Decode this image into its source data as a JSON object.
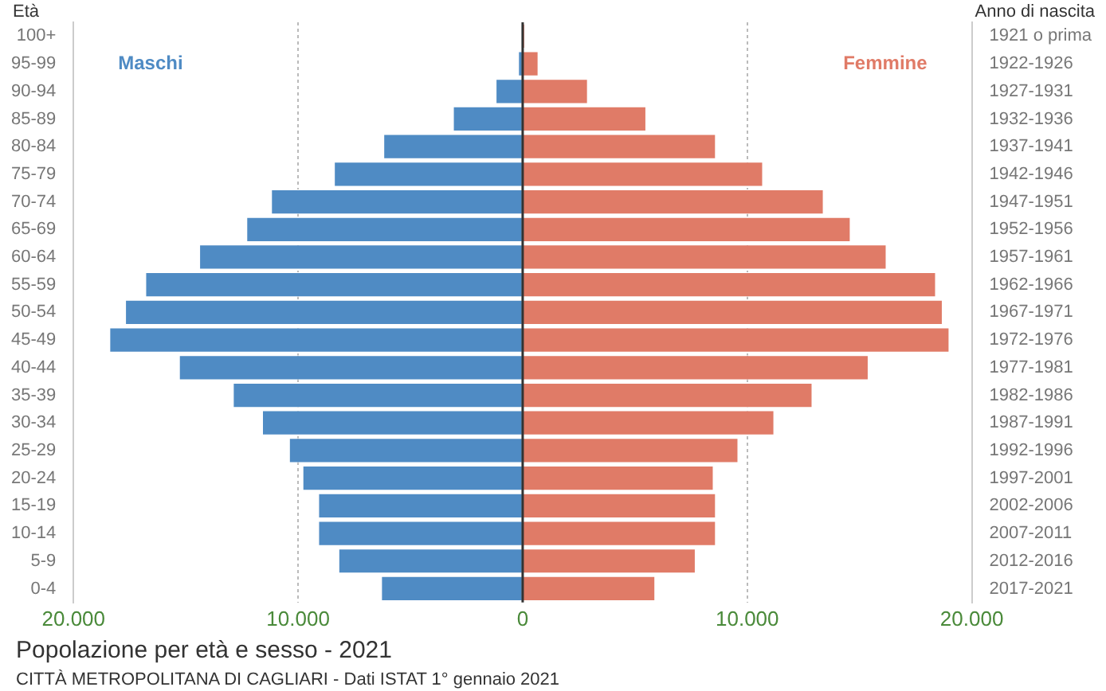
{
  "chart_data": {
    "type": "bar",
    "orientation": "horizontal",
    "stacked": true,
    "title": "Popolazione per età e sesso - 2021",
    "ylabel": "Età",
    "y2label": "Anno di nascita",
    "categories": [
      "100+",
      "95-99",
      "90-94",
      "85-89",
      "80-84",
      "75-79",
      "70-74",
      "65-69",
      "60-64",
      "55-59",
      "50-54",
      "45-49",
      "40-44",
      "35-39",
      "30-34",
      "25-29",
      "20-24",
      "15-19",
      "10-14",
      "5-9",
      "0-4"
    ],
    "y2_categories": [
      "1921 o prima",
      "1922-1926",
      "1927-1931",
      "1932-1936",
      "1937-1941",
      "1942-1946",
      "1947-1951",
      "1952-1956",
      "1957-1961",
      "1962-1966",
      "1967-1971",
      "1972-1976",
      "1977-1981",
      "1982-1986",
      "1987-1991",
      "1992-1996",
      "1997-2001",
      "2002-2006",
      "2007-2011",
      "2012-2016",
      "2017-2021"
    ],
    "series": [
      {
        "name": "Maschi",
        "color": "#4f8bc4",
        "values": [
          -50,
          -200,
          -1200,
          -3100,
          -6200,
          -8400,
          -11200,
          -12300,
          -14400,
          -16800,
          -17700,
          -18400,
          -15300,
          -12900,
          -11600,
          -10400,
          -9800,
          -9100,
          -9100,
          -8200,
          -6300
        ]
      },
      {
        "name": "Femmine",
        "color": "#e07b67",
        "values": [
          100,
          700,
          2900,
          5500,
          8600,
          10700,
          13400,
          14600,
          16200,
          18400,
          18700,
          19000,
          15400,
          12900,
          11200,
          9600,
          8500,
          8600,
          8600,
          7700,
          5900
        ]
      }
    ],
    "xlim": [
      -20000,
      20000
    ],
    "xticks": [
      {
        "value": -20000,
        "label": "20.000"
      },
      {
        "value": -10000,
        "label": "10.000"
      },
      0,
      {
        "value": 10000,
        "label": "10.000"
      },
      {
        "value": 20000,
        "label": "20.000"
      }
    ],
    "grid": "x",
    "legend": false,
    "ref_lines": [
      {
        "axis": "x",
        "value": 0,
        "color": "#333333"
      }
    ],
    "annotations": [
      "CITTÀ METROPOLITANA DI CAGLIARI - Dati ISTAT 1° gennaio 2021"
    ]
  }
}
